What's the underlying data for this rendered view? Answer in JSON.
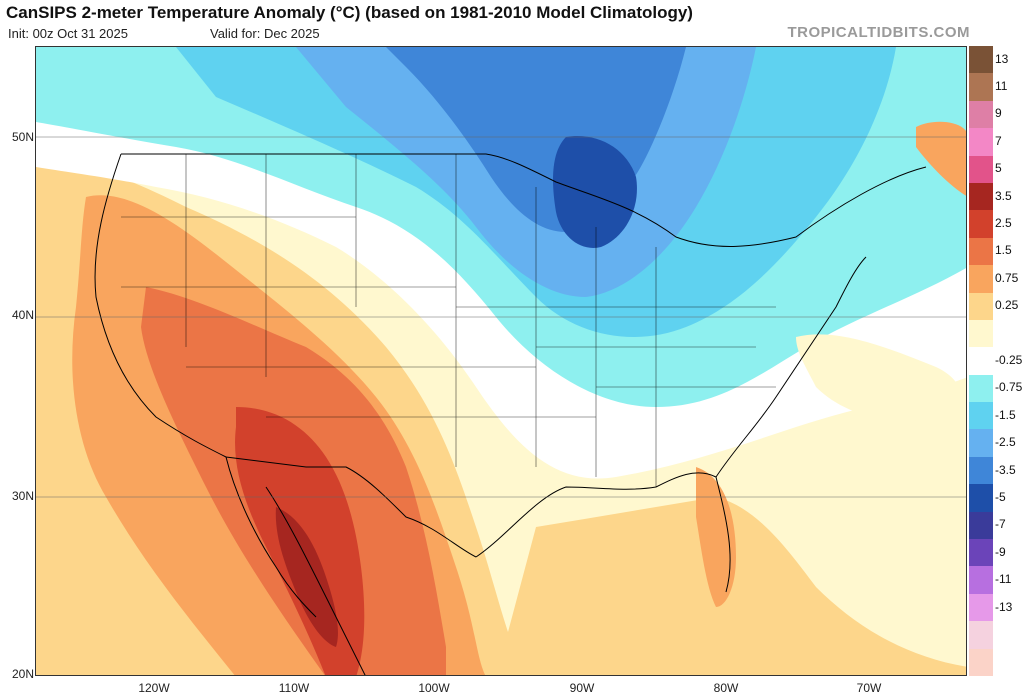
{
  "header": {
    "title": "CanSIPS 2-meter Temperature Anomaly (°C) (based on 1981-2010 Model Climatology)",
    "init": "Init: 00z Oct 31 2025",
    "valid": "Valid for: Dec 2025",
    "brand": "TROPICALTIDBITS.COM"
  },
  "axes": {
    "lat_labels": [
      "50N",
      "40N",
      "30N",
      "20N"
    ],
    "lon_labels": [
      "120W",
      "110W",
      "100W",
      "90W",
      "80W",
      "70W"
    ]
  },
  "colorbar": {
    "levels": [
      {
        "label": "13",
        "color": "#7a5236"
      },
      {
        "label": "11",
        "color": "#ad7553"
      },
      {
        "label": "9",
        "color": "#de7fa6"
      },
      {
        "label": "7",
        "color": "#f387c6"
      },
      {
        "label": "5",
        "color": "#e2538a"
      },
      {
        "label": "3.5",
        "color": "#a62620"
      },
      {
        "label": "2.5",
        "color": "#d2412c"
      },
      {
        "label": "1.5",
        "color": "#eb7546"
      },
      {
        "label": "0.75",
        "color": "#f9a55e"
      },
      {
        "label": "0.25",
        "color": "#fdd68b"
      },
      {
        "label": "",
        "color": "#fff8cf"
      },
      {
        "label": "-0.25",
        "color": "#ffffff"
      },
      {
        "label": "-0.75",
        "color": "#8ef0ef"
      },
      {
        "label": "-1.5",
        "color": "#5fd2f0"
      },
      {
        "label": "-2.5",
        "color": "#65b1f0"
      },
      {
        "label": "-3.5",
        "color": "#3f86d8"
      },
      {
        "label": "-5",
        "color": "#1e4fa9"
      },
      {
        "label": "-7",
        "color": "#3a3b9a"
      },
      {
        "label": "-9",
        "color": "#6b44b9"
      },
      {
        "label": "-11",
        "color": "#b76fe0"
      },
      {
        "label": "-13",
        "color": "#e699e9"
      },
      {
        "label": "",
        "color": "#f5d2df"
      },
      {
        "label": "",
        "color": "#fbd3c8"
      }
    ]
  }
}
